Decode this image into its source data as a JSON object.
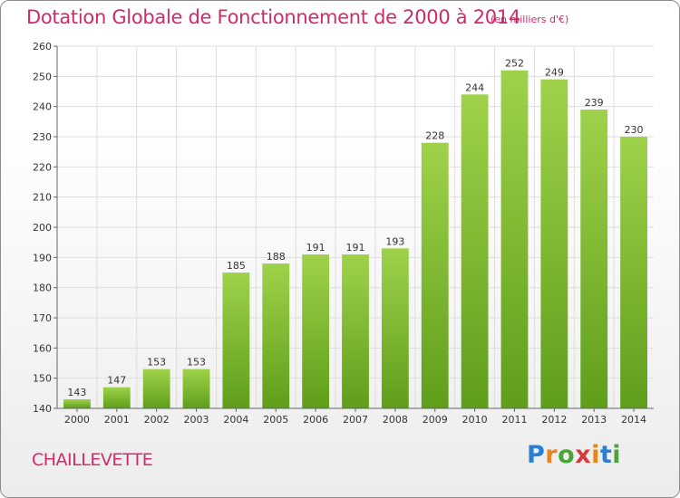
{
  "chart_data": {
    "type": "bar",
    "title": "Dotation Globale de Fonctionnement de 2000 à 2014",
    "subtitle": "(en milliers d'€)",
    "categories": [
      "2000",
      "2001",
      "2002",
      "2003",
      "2004",
      "2005",
      "2006",
      "2007",
      "2008",
      "2009",
      "2010",
      "2011",
      "2012",
      "2013",
      "2014"
    ],
    "values": [
      143,
      147,
      153,
      153,
      185,
      188,
      191,
      191,
      193,
      228,
      244,
      252,
      249,
      239,
      230
    ],
    "ylim": [
      140,
      260
    ],
    "yticks": [
      140,
      150,
      160,
      170,
      180,
      190,
      200,
      210,
      220,
      230,
      240,
      250,
      260
    ],
    "grid": true,
    "bar_color_top": "#9fd24a",
    "bar_color_bottom": "#5f9e1a"
  },
  "footer": {
    "city": "CHAILLEVETTE",
    "logo_letters": [
      "P",
      "r",
      "o",
      "x",
      "i",
      "t",
      "i"
    ]
  },
  "colors": {
    "title": "#d12a6b",
    "grid": "#dddddd",
    "axis": "#666666"
  }
}
